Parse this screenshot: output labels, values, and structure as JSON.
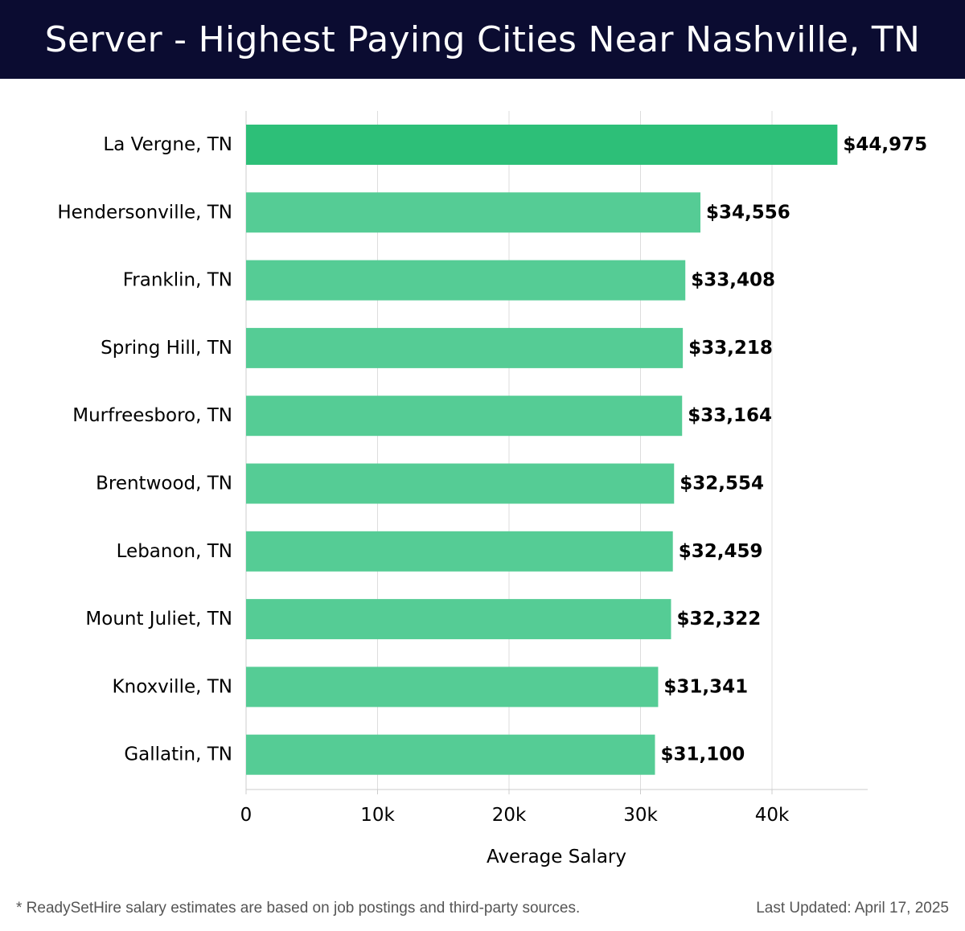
{
  "header": {
    "title": "Server - Highest Paying Cities Near Nashville, TN"
  },
  "chart_data": {
    "type": "bar",
    "orientation": "horizontal",
    "categories": [
      "La Vergne, TN",
      "Hendersonville, TN",
      "Franklin, TN",
      "Spring Hill, TN",
      "Murfreesboro, TN",
      "Brentwood, TN",
      "Lebanon, TN",
      "Mount Juliet, TN",
      "Knoxville, TN",
      "Gallatin, TN"
    ],
    "values": [
      44975,
      34556,
      33408,
      33218,
      33164,
      32554,
      32459,
      32322,
      31341,
      31100
    ],
    "data_labels": [
      "$44,975",
      "$34,556",
      "$33,408",
      "$33,218",
      "$33,164",
      "$32,554",
      "$32,459",
      "$32,322",
      "$31,341",
      "$31,100"
    ],
    "xlabel": "Average Salary",
    "ylabel": "",
    "xlim": [
      0,
      47500
    ],
    "x_ticks": [
      0,
      10000,
      20000,
      30000,
      40000
    ],
    "x_tick_labels": [
      "0",
      "10k",
      "20k",
      "30k",
      "40k"
    ],
    "grid": true,
    "colors": {
      "top_bar": "#2dbf78",
      "bar": "#55cc95",
      "gridline": "#dddddd",
      "axis": "#cccccc",
      "text": "#000000"
    }
  },
  "footer": {
    "note": "* ReadySetHire salary estimates are based on job postings and third-party sources.",
    "updated": "Last Updated: April 17, 2025"
  }
}
